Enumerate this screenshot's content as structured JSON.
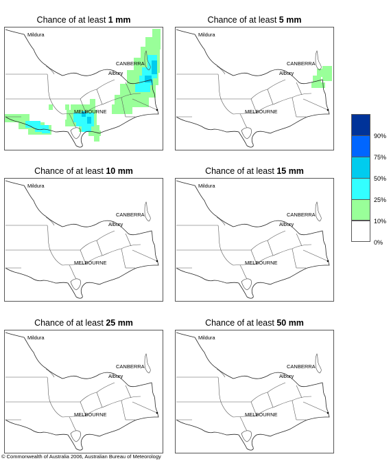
{
  "panels": [
    {
      "prefix": "Chance of at least ",
      "amount": "1 mm"
    },
    {
      "prefix": "Chance of at least ",
      "amount": "5 mm"
    },
    {
      "prefix": "Chance of at least ",
      "amount": "10 mm"
    },
    {
      "prefix": "Chance of at least ",
      "amount": "15 mm"
    },
    {
      "prefix": "Chance of at least ",
      "amount": "25 mm"
    },
    {
      "prefix": "Chance of at least ",
      "amount": "50 mm"
    }
  ],
  "map_labels": {
    "mildura": "Mildura",
    "canberra": "CANBERRA",
    "albury": "Albury",
    "melbourne": "MELBOURNE"
  },
  "legend": {
    "labels": [
      "90%",
      "75%",
      "50%",
      "25%",
      "10%",
      "0%"
    ],
    "colors": [
      "#003399",
      "#0066ff",
      "#00ccee",
      "#33ffff",
      "#99ff99",
      "#ffffff"
    ]
  },
  "copyright": "© Commonwealth of Australia 2006, Australian Bureau of Meteorology"
}
